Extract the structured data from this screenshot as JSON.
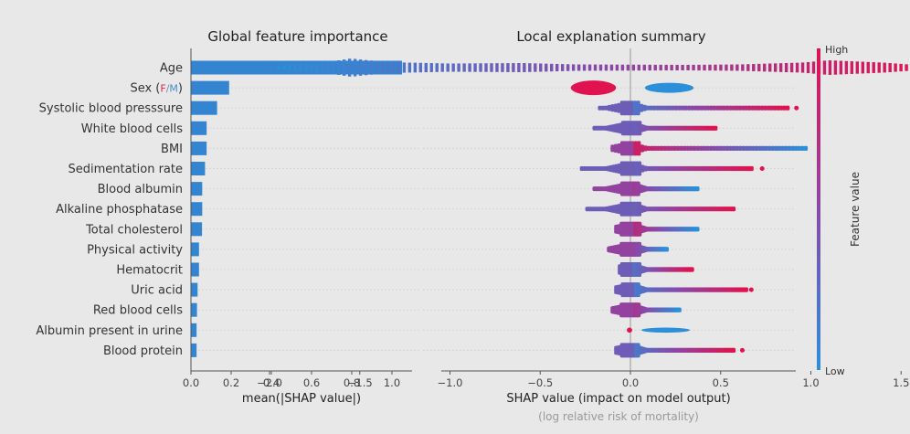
{
  "chart_data": [
    {
      "type": "bar",
      "orientation": "horizontal",
      "title": "Global feature importance",
      "xlabel": "mean(|SHAP value|)",
      "ylabel": "",
      "xlim": [
        0,
        1.1
      ],
      "xticks": [
        "0.0",
        "0.2",
        "0.4",
        "0.6",
        "0.8",
        "1.0"
      ],
      "xtick_values": [
        0,
        0.2,
        0.4,
        0.6,
        0.8,
        1.0
      ],
      "grid": "horizontal dotted",
      "bar_color": "#3385d1",
      "categories": [
        "Age",
        "Sex",
        "Systolic blood presssure",
        "White blood cells",
        "BMI",
        "Sedimentation rate",
        "Blood albumin",
        "Alkaline phosphatase",
        "Total cholesterol",
        "Physical activity",
        "Hematocrit",
        "Uric acid",
        "Red blood cells",
        "Albumin present in urine",
        "Blood protein"
      ],
      "sex_label_suffix": {
        "open": " (",
        "f": "F",
        "slash": "/",
        "m": "M",
        "close": ")",
        "f_color": "#d9265a",
        "m_color": "#3d8fd6"
      },
      "values": [
        1.05,
        0.19,
        0.13,
        0.078,
        0.078,
        0.07,
        0.056,
        0.056,
        0.055,
        0.04,
        0.04,
        0.033,
        0.03,
        0.028,
        0.028
      ]
    },
    {
      "type": "scatter",
      "subtype": "beeswarm",
      "title": "Local explanation summary",
      "xlabel": "SHAP value (impact on model output)",
      "xlabel_sub": "(log relative risk of mortality)",
      "xlim": [
        -2.1,
        1.8
      ],
      "xticks": [
        "−2.0",
        "−1.5",
        "−1.0",
        "−0.5",
        "0.0",
        "0.5",
        "1.0",
        "1.5"
      ],
      "xtick_values": [
        -2.0,
        -1.5,
        -1.0,
        -0.5,
        0.0,
        0.5,
        1.0,
        1.5
      ],
      "grid": "horizontal dotted",
      "colorbar": {
        "label": "Feature value",
        "high": "High",
        "low": "Low",
        "high_color": "#ff0052",
        "low_color": "#008bfb"
      },
      "series": [
        {
          "name": "Age",
          "min": -1.95,
          "max": 1.65,
          "low_end": "left",
          "outlier": null,
          "shape": [
            [
              -1.95,
              0.2
            ],
            [
              -1.7,
              0.55
            ],
            [
              -1.55,
              1
            ],
            [
              -1.35,
              0.6
            ],
            [
              -1.0,
              0.45
            ],
            [
              -0.6,
              0.5
            ],
            [
              -0.3,
              0.35
            ],
            [
              0.3,
              0.3
            ],
            [
              0.6,
              0.35
            ],
            [
              0.95,
              0.55
            ],
            [
              1.1,
              0.8
            ],
            [
              1.4,
              0.55
            ],
            [
              1.65,
              0.2
            ]
          ]
        },
        {
          "name": "Sex",
          "min": -0.33,
          "max": 0.35,
          "split": true,
          "f_range": [
            -0.33,
            -0.08
          ],
          "m_range": [
            0.08,
            0.35
          ],
          "outlier": null
        },
        {
          "name": "Systolic blood presssure",
          "min": -0.17,
          "max": 0.87,
          "low_end": "left",
          "outlier": 0.92
        },
        {
          "name": "White blood cells",
          "min": -0.2,
          "max": 0.47,
          "low_end": "left",
          "outlier": null
        },
        {
          "name": "BMI",
          "min": -0.1,
          "max": 0.97,
          "low_end": "right",
          "outlier": null
        },
        {
          "name": "Sedimentation rate",
          "min": -0.27,
          "max": 0.67,
          "low_end": "left",
          "outlier": 0.73
        },
        {
          "name": "Blood albumin",
          "min": -0.2,
          "max": 0.37,
          "low_end": "right",
          "outlier": null
        },
        {
          "name": "Alkaline phosphatase",
          "min": -0.24,
          "max": 0.57,
          "low_end": "left",
          "outlier": null
        },
        {
          "name": "Total cholesterol",
          "min": -0.08,
          "max": 0.37,
          "low_end": "right",
          "outlier": null
        },
        {
          "name": "Physical activity",
          "min": -0.12,
          "max": 0.2,
          "low_end": "right",
          "outlier": null
        },
        {
          "name": "Hematocrit",
          "min": -0.06,
          "max": 0.34,
          "low_end": "left",
          "outlier": null
        },
        {
          "name": "Uric acid",
          "min": -0.08,
          "max": 0.64,
          "low_end": "left",
          "outlier": 0.67
        },
        {
          "name": "Red blood cells",
          "min": -0.1,
          "max": 0.27,
          "low_end": "right",
          "outlier": null
        },
        {
          "name": "Albumin present in urine",
          "min": -0.02,
          "max": 0.33,
          "split": true,
          "f_range": [
            -0.02,
            0.01
          ],
          "m_range": [
            0.06,
            0.33
          ],
          "outlier": null
        },
        {
          "name": "Blood protein",
          "min": -0.08,
          "max": 0.57,
          "low_end": "left",
          "outlier": 0.62
        }
      ]
    }
  ]
}
